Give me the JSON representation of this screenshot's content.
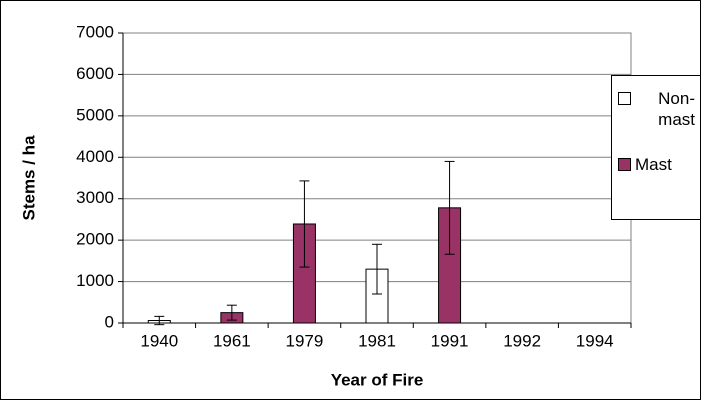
{
  "chart_data": {
    "type": "bar",
    "y_label": "Stems / ha",
    "x_label": "Year of Fire",
    "categories": [
      "1940",
      "1961",
      "1979",
      "1981",
      "1991",
      "1992",
      "1994"
    ],
    "series": [
      {
        "name": "Non-mast",
        "color": "#ffffff",
        "values": [
          60,
          null,
          null,
          1300,
          null,
          null,
          null
        ],
        "errors": [
          100,
          null,
          null,
          600,
          null,
          null,
          null
        ]
      },
      {
        "name": "Mast",
        "color": "#993366",
        "values": [
          null,
          250,
          2390,
          null,
          2780,
          null,
          null
        ],
        "errors": [
          null,
          180,
          1040,
          null,
          1120,
          null,
          null
        ]
      }
    ],
    "ylim": [
      0,
      7000
    ],
    "yticks": [
      0,
      1000,
      2000,
      3000,
      4000,
      5000,
      6000,
      7000
    ],
    "grid": true
  }
}
